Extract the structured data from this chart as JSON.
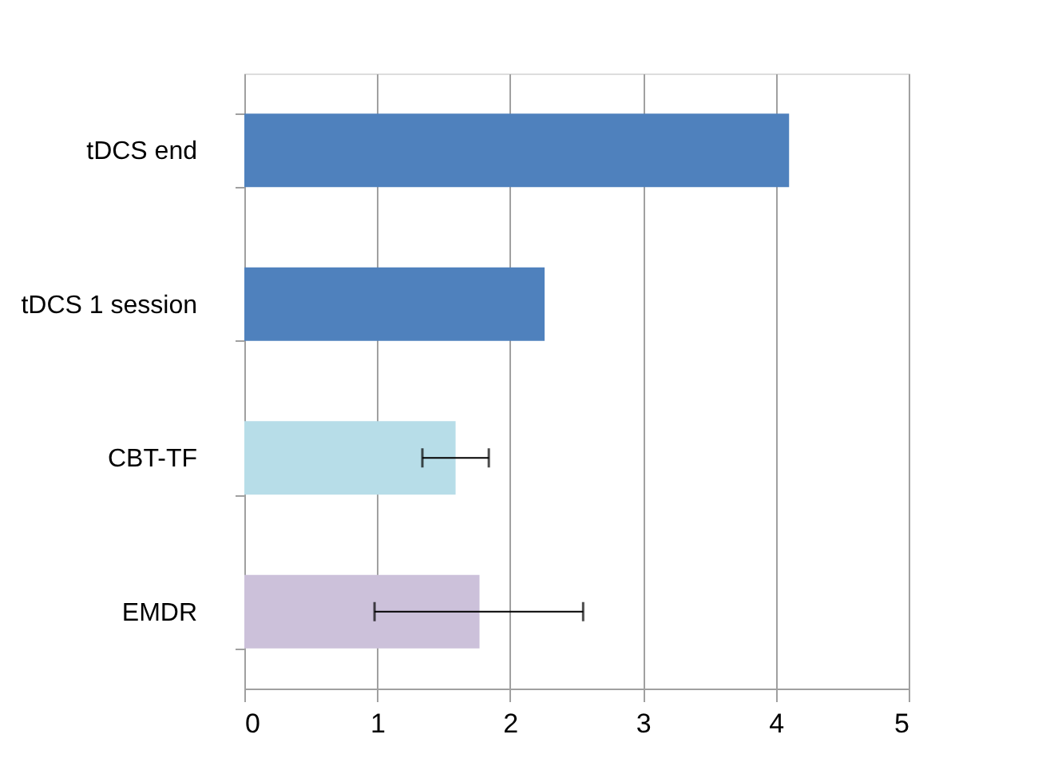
{
  "chart_data": {
    "type": "bar",
    "orientation": "horizontal",
    "categories": [
      "tDCS end",
      "tDCS 1 session",
      "CBT-TF",
      "EMDR"
    ],
    "values": [
      4.1,
      2.26,
      1.59,
      1.77
    ],
    "colors": [
      "#4f81bd",
      "#4f81bd",
      "#b7dde8",
      "#ccc1da"
    ],
    "errors": [
      null,
      null,
      [
        1.34,
        1.84
      ],
      [
        0.98,
        2.55
      ]
    ],
    "xlim": [
      0,
      5
    ],
    "xticks": [
      0,
      1,
      2,
      3,
      4,
      5
    ],
    "grid": "x"
  }
}
